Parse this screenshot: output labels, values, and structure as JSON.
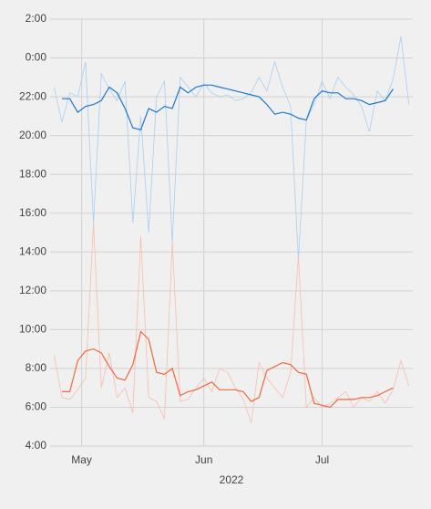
{
  "chart_data": {
    "type": "line",
    "xlabel": "2022",
    "x": [
      114,
      116,
      118,
      120,
      122,
      124,
      126,
      128,
      130,
      132,
      134,
      136,
      138,
      140,
      142,
      144,
      146,
      148,
      150,
      152,
      154,
      156,
      158,
      160,
      162,
      164,
      166,
      168,
      170,
      172,
      174,
      176,
      178,
      180,
      182,
      184,
      186,
      188,
      190,
      192,
      194,
      196,
      198,
      200,
      202,
      204
    ],
    "xlim": [
      113,
      205
    ],
    "xticks": [
      {
        "value": 121,
        "label": "May"
      },
      {
        "value": 152,
        "label": "Jun"
      },
      {
        "value": 182,
        "label": "Jul"
      }
    ],
    "ylim": [
      4,
      26
    ],
    "yticks": [
      {
        "value": 4,
        "label": "4:00"
      },
      {
        "value": 6,
        "label": "6:00"
      },
      {
        "value": 8,
        "label": "8:00"
      },
      {
        "value": 10,
        "label": "10:00"
      },
      {
        "value": 12,
        "label": "12:00"
      },
      {
        "value": 14,
        "label": "14:00"
      },
      {
        "value": 16,
        "label": "16:00"
      },
      {
        "value": 18,
        "label": "18:00"
      },
      {
        "value": 20,
        "label": "20:00"
      },
      {
        "value": 22,
        "label": "22:00"
      },
      {
        "value": 24,
        "label": "0:00"
      },
      {
        "value": 26,
        "label": "2:00"
      }
    ],
    "grid": true,
    "series": [
      {
        "color": "#a7cff2",
        "width": 0.8,
        "values": [
          22.5,
          20.7,
          22.2,
          22.0,
          23.8,
          15.5,
          23.2,
          22.4,
          21.8,
          22.8,
          15.5,
          21.0,
          15.0,
          22.0,
          22.8,
          14.5,
          23.0,
          22.5,
          22.0,
          22.7,
          22.2,
          22.0,
          22.1,
          21.8,
          21.9,
          22.2,
          23.0,
          22.3,
          23.8,
          22.5,
          21.5,
          13.6,
          20.8,
          21.6,
          22.8,
          21.9,
          23.0,
          22.5,
          22.1,
          21.5,
          20.2,
          22.3,
          21.8,
          22.9,
          25.1,
          21.6
        ]
      },
      {
        "color": "#f8bdae",
        "width": 0.8,
        "values": [
          8.7,
          6.5,
          6.4,
          6.9,
          7.5,
          15.5,
          7.0,
          8.8,
          6.5,
          7.0,
          5.7,
          14.8,
          6.5,
          6.3,
          5.4,
          14.5,
          6.3,
          6.4,
          7.0,
          7.5,
          6.8,
          8.0,
          7.8,
          7.0,
          6.4,
          5.2,
          8.3,
          7.5,
          7.0,
          6.5,
          7.8,
          13.8,
          6.0,
          6.5,
          6.0,
          6.2,
          6.5,
          6.8,
          6.0,
          6.5,
          6.3,
          6.8,
          6.2,
          6.9,
          8.4,
          7.1
        ]
      },
      {
        "color": "#1a78d0",
        "width": 1.2,
        "values": [
          null,
          21.9,
          21.9,
          21.2,
          21.5,
          21.6,
          21.8,
          22.5,
          22.2,
          21.4,
          20.4,
          20.3,
          21.4,
          21.2,
          21.5,
          21.4,
          22.5,
          22.2,
          22.5,
          22.6,
          22.6,
          22.5,
          22.4,
          22.3,
          22.2,
          22.1,
          22.0,
          21.6,
          21.1,
          21.2,
          21.1,
          20.9,
          20.8,
          21.9,
          22.3,
          22.2,
          22.2,
          21.9,
          21.9,
          21.8,
          21.6,
          21.7,
          21.8,
          22.4,
          null,
          null
        ]
      },
      {
        "color": "#f2663c",
        "width": 1.2,
        "values": [
          null,
          6.8,
          6.8,
          8.4,
          8.9,
          9.0,
          8.8,
          8.1,
          7.5,
          7.4,
          8.2,
          9.9,
          9.5,
          7.8,
          7.7,
          8.0,
          6.6,
          6.8,
          6.9,
          7.1,
          7.3,
          6.9,
          6.9,
          6.9,
          6.8,
          6.3,
          6.5,
          7.9,
          8.1,
          8.3,
          8.2,
          7.8,
          7.7,
          6.2,
          6.1,
          6.0,
          6.4,
          6.4,
          6.4,
          6.5,
          6.5,
          6.6,
          6.8,
          7.0,
          null,
          null
        ]
      }
    ]
  }
}
